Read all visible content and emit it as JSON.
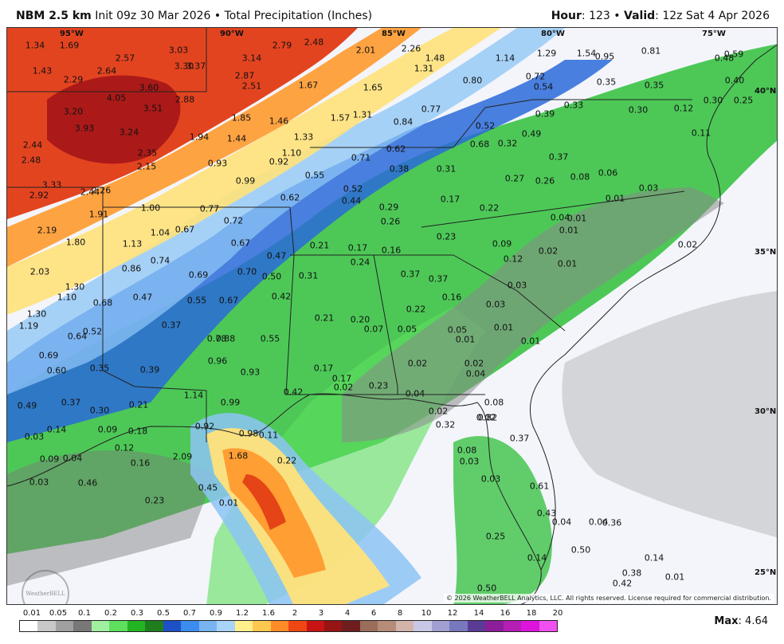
{
  "header": {
    "model": "NBM 2.5 km",
    "init": "Init 09z 30 Mar 2026",
    "separator": "•",
    "product": "Total Precipitation (Inches)",
    "hour_label": "Hour",
    "hour": "123",
    "valid_label": "Valid",
    "valid": "12z Sat 4 Apr 2026"
  },
  "map": {
    "background_color": "#f2f4fa",
    "longitudes": [
      "95°W",
      "90°W",
      "85°W",
      "80°W",
      "75°W"
    ],
    "latitudes": [
      "40°N",
      "35°N",
      "30°N",
      "25°N"
    ],
    "copyright": "© 2026 WeatherBELL Analytics, LLC. All rights reserved. License required for commercial distribution.",
    "logo": "WeatherBELL",
    "values": [
      "1.34",
      "1.69",
      "3.03",
      "2.48",
      "2.79",
      "2.01",
      "2.26",
      "1.29",
      "1.54",
      "0.95",
      "0.81",
      "0.59",
      "0.48",
      "1.43",
      "2.64",
      "2.57",
      "3.30",
      "3.37",
      "3.14",
      "1.48",
      "1.31",
      "1.14",
      "0.72",
      "0.80",
      "0.40",
      "2.29",
      "4.05",
      "3.60",
      "2.87",
      "2.51",
      "1.67",
      "1.65",
      "0.54",
      "0.35",
      "0.35",
      "0.30",
      "0.25",
      "3.20",
      "3.51",
      "2.88",
      "0.77",
      "1.57",
      "1.31",
      "0.33",
      "0.39",
      "0.30",
      "3.93",
      "3.24",
      "1.85",
      "1.46",
      "0.84",
      "0.52",
      "0.12",
      "2.44",
      "1.94",
      "1.44",
      "1.33",
      "0.68",
      "0.32",
      "0.49",
      "0.11",
      "2.48",
      "2.35",
      "0.93",
      "1.10",
      "0.71",
      "0.62",
      "0.37",
      "2.15",
      "0.92",
      "0.38",
      "0.31",
      "0.27",
      "0.26",
      "0.08",
      "0.06",
      "0.03",
      "3.33",
      "2.92",
      "2.44",
      "2.26",
      "0.99",
      "0.55",
      "0.52",
      "0.62",
      "0.44",
      "0.29",
      "0.17",
      "0.22",
      "0.01",
      "1.91",
      "1.00",
      "0.77",
      "0.72",
      "0.26",
      "0.04",
      "0.01",
      "0.01",
      "2.19",
      "1.04",
      "0.67",
      "0.23",
      "0.09",
      "0.02",
      "0.02",
      "1.80",
      "1.13",
      "0.67",
      "0.47",
      "0.21",
      "0.17",
      "0.16",
      "0.12",
      "0.01",
      "2.03",
      "0.86",
      "0.74",
      "0.24",
      "0.37",
      "0.37",
      "0.03",
      "1.30",
      "0.69",
      "0.70",
      "0.50",
      "0.31",
      "1.10",
      "0.68",
      "0.47",
      "0.55",
      "0.67",
      "0.42",
      "0.22",
      "0.16",
      "0.03",
      "1.30",
      "0.37",
      "0.21",
      "0.20",
      "0.07",
      "0.05",
      "0.05",
      "0.01",
      "1.19",
      "0.52",
      "0.64",
      "0.78",
      "0.88",
      "0.55",
      "0.01",
      "0.01",
      "0.69",
      "0.96",
      "0.02",
      "0.02",
      "0.35",
      "0.39",
      "0.93",
      "0.17",
      "0.04",
      "0.60",
      "1.14",
      "0.42",
      "0.17",
      "0.02",
      "0.23",
      "0.04",
      "0.49",
      "0.37",
      "0.21",
      "0.99",
      "0.08",
      "0.30",
      "0.02",
      "0.02",
      "0.82",
      "0.92",
      "0.98",
      "0.11",
      "0.32",
      "0.14",
      "0.09",
      "0.18",
      "0.37",
      "0.03",
      "0.12",
      "0.08",
      "0.09",
      "0.04",
      "0.16",
      "2.09",
      "1.68",
      "0.22",
      "0.03",
      "0.03",
      "0.46",
      "0.23",
      "0.03",
      "0.61",
      "0.45",
      "0.01",
      "0.43",
      "0.04",
      "0.04",
      "0.36",
      "0.25",
      "0.50",
      "0.14",
      "0.14",
      "0.01",
      "0.38",
      "0.42",
      "0.50"
    ]
  },
  "legend": {
    "ticks": [
      "0.01",
      "0.05",
      "0.1",
      "0.2",
      "0.3",
      "0.5",
      "0.7",
      "0.9",
      "1.2",
      "1.6",
      "2",
      "3",
      "4",
      "6",
      "8",
      "10",
      "12",
      "14",
      "16",
      "18",
      "20"
    ],
    "colors": [
      "#ffffff",
      "#c8c8c8",
      "#a0a0a0",
      "#787878",
      "#a0f0a0",
      "#5ee05e",
      "#22b422",
      "#1e7e1e",
      "#1e50c8",
      "#3c8cf0",
      "#78b4f0",
      "#a8d4f8",
      "#fff08c",
      "#ffc850",
      "#ff8c28",
      "#f04614",
      "#c81414",
      "#961414",
      "#6e1e1e",
      "#9a6e5a",
      "#b48c78",
      "#d2b4aa",
      "#c8c8e6",
      "#a0a0d2",
      "#7878be",
      "#5a3c96",
      "#8c1e9a",
      "#b41eb4",
      "#dc14dc",
      "#f050f0"
    ],
    "max_label": "Max",
    "max_value": "4.64"
  }
}
